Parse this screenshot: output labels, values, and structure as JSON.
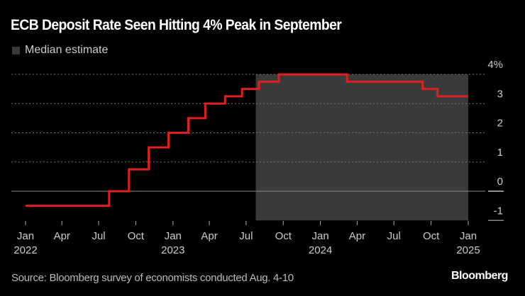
{
  "title": "ECB Deposit Rate Seen Hitting 4% Peak in September",
  "legend": {
    "label": "Median estimate",
    "color": "#3a3a3a"
  },
  "source": "Source: Bloomberg survey of economists conducted Aug. 4-10",
  "logo": "Bloomberg",
  "chart_data": {
    "type": "line",
    "step": true,
    "title": "ECB Deposit Rate Seen Hitting 4% Peak in September",
    "line_color": "#e02020",
    "shaded_region": {
      "label": "Median estimate",
      "start": "2023-07-25",
      "end": "2025-01-01",
      "color": "#3a3a3a"
    },
    "x_range": [
      "2022-01-01",
      "2025-01-01"
    ],
    "ylim": [
      -1,
      4
    ],
    "y_axis_position": "right",
    "y_ticks": [
      {
        "value": 4,
        "label": "4%"
      },
      {
        "value": 3,
        "label": "3"
      },
      {
        "value": 2,
        "label": "2"
      },
      {
        "value": 1,
        "label": "1"
      },
      {
        "value": 0,
        "label": "0"
      },
      {
        "value": -1,
        "label": "-1"
      }
    ],
    "x_ticks": [
      {
        "date": "2022-01-01",
        "label": "Jan",
        "year": "2022"
      },
      {
        "date": "2022-04-01",
        "label": "Apr",
        "year": ""
      },
      {
        "date": "2022-07-01",
        "label": "Jul",
        "year": ""
      },
      {
        "date": "2022-10-01",
        "label": "Oct",
        "year": ""
      },
      {
        "date": "2023-01-01",
        "label": "Jan",
        "year": "2023"
      },
      {
        "date": "2023-04-01",
        "label": "Apr",
        "year": ""
      },
      {
        "date": "2023-07-01",
        "label": "Jul",
        "year": ""
      },
      {
        "date": "2023-10-01",
        "label": "Oct",
        "year": ""
      },
      {
        "date": "2024-01-01",
        "label": "Jan",
        "year": "2024"
      },
      {
        "date": "2024-04-01",
        "label": "Apr",
        "year": ""
      },
      {
        "date": "2024-07-01",
        "label": "Jul",
        "year": ""
      },
      {
        "date": "2024-10-01",
        "label": "Oct",
        "year": ""
      },
      {
        "date": "2025-01-01",
        "label": "Jan",
        "year": "2025"
      }
    ],
    "grid": true,
    "series": [
      {
        "points": [
          {
            "date": "2022-01-01",
            "value": -0.5
          },
          {
            "date": "2022-07-27",
            "value": 0
          },
          {
            "date": "2022-09-14",
            "value": 0.75
          },
          {
            "date": "2022-11-02",
            "value": 1.5
          },
          {
            "date": "2022-12-21",
            "value": 2.0
          },
          {
            "date": "2023-02-08",
            "value": 2.5
          },
          {
            "date": "2023-03-22",
            "value": 3.0
          },
          {
            "date": "2023-05-10",
            "value": 3.25
          },
          {
            "date": "2023-06-21",
            "value": 3.5
          },
          {
            "date": "2023-08-02",
            "value": 3.75
          },
          {
            "date": "2023-09-20",
            "value": 4.0
          },
          {
            "date": "2024-03-07",
            "value": 3.75
          },
          {
            "date": "2024-09-10",
            "value": 3.5
          },
          {
            "date": "2024-10-17",
            "value": 3.25
          },
          {
            "date": "2025-01-01",
            "value": 3.25
          }
        ]
      }
    ]
  }
}
